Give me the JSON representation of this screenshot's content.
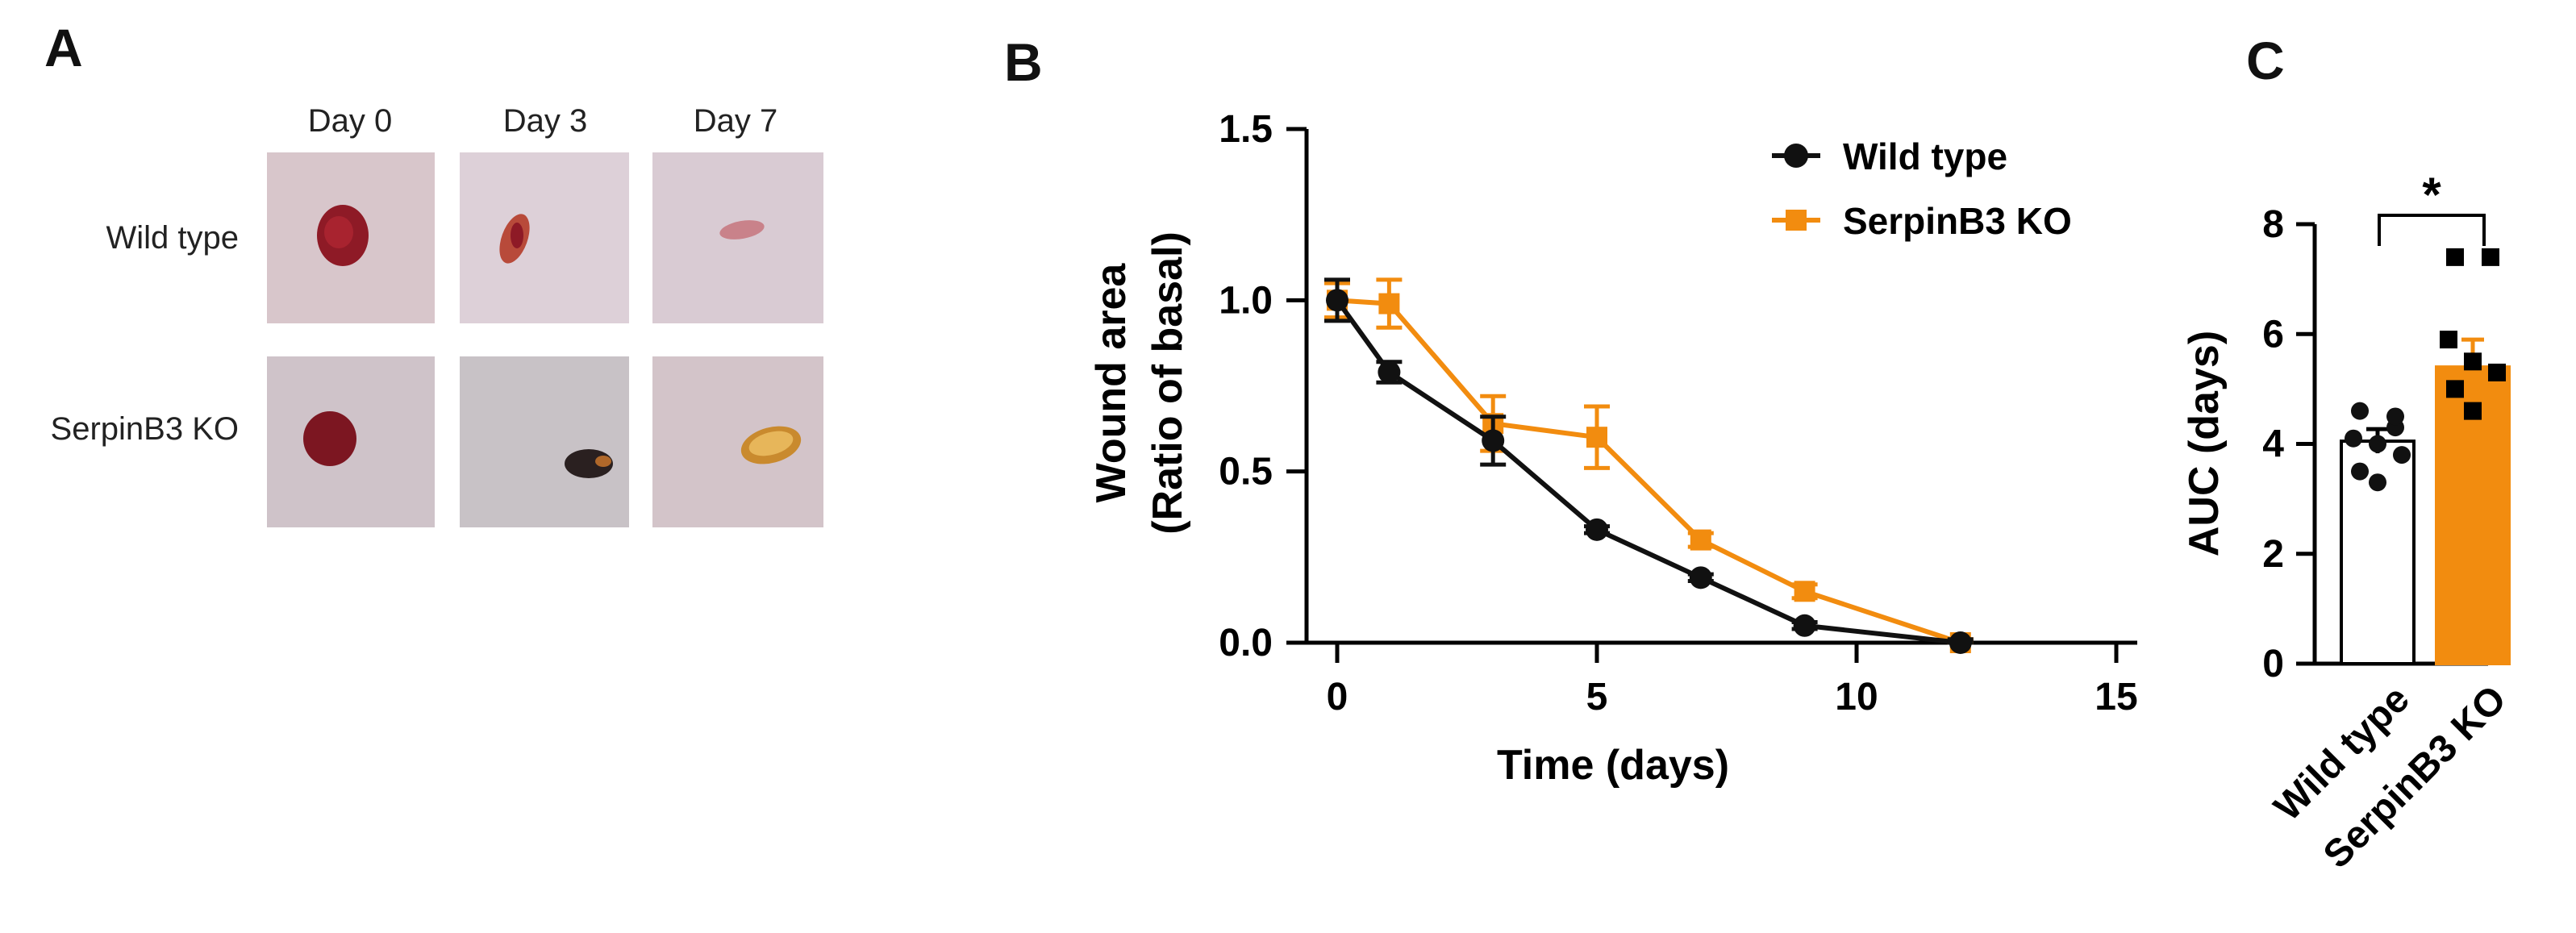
{
  "panels": {
    "a": {
      "letter": "A"
    },
    "b": {
      "letter": "B"
    },
    "c": {
      "letter": "C"
    }
  },
  "photos": {
    "columns": [
      "Day 0",
      "Day 3",
      "Day 7"
    ],
    "rows": [
      "Wild type",
      "SerpinB3 KO"
    ],
    "colors": {
      "skin_wt": "#d7c7cc",
      "skin_ko": "#cabfc4",
      "wound_red": "#8e1a26",
      "wound_scab": "#2a2020",
      "wound_yellow": "#d49a3a"
    }
  },
  "colors": {
    "wild_type": "#111111",
    "knockout": "#f28c0f"
  },
  "chart_data": [
    {
      "type": "line",
      "title": "",
      "xlabel": "Time (days)",
      "ylabel": [
        "Wound area",
        "(Ratio of basal)"
      ],
      "xlim": [
        0,
        15
      ],
      "ylim": [
        0,
        1.5
      ],
      "xticks": [
        "0",
        "5",
        "10",
        "15"
      ],
      "yticks": [
        "0.0",
        "0.5",
        "1.0",
        "1.5"
      ],
      "legend": [
        "Wild type",
        "SerpinB3 KO"
      ],
      "series": [
        {
          "name": "Wild type",
          "x": [
            0,
            1,
            3,
            5,
            7,
            9,
            12
          ],
          "y": [
            1.0,
            0.79,
            0.59,
            0.33,
            0.19,
            0.05,
            0.0
          ],
          "err": [
            0.06,
            0.03,
            0.07,
            0.01,
            0.01,
            0.01,
            0.01
          ]
        },
        {
          "name": "SerpinB3 KO",
          "x": [
            0,
            1,
            3,
            5,
            7,
            9,
            12
          ],
          "y": [
            1.0,
            0.99,
            0.64,
            0.6,
            0.3,
            0.15,
            0.0
          ],
          "err": [
            0.05,
            0.07,
            0.08,
            0.09,
            0.02,
            0.02,
            0.01
          ]
        }
      ]
    },
    {
      "type": "bar",
      "title": "",
      "xlabel": "",
      "ylabel": "AUC (days)",
      "ylim": [
        0,
        8
      ],
      "yticks": [
        "0",
        "2",
        "4",
        "6",
        "8"
      ],
      "categories": [
        "Wild type",
        "SerpinB3 KO"
      ],
      "values": [
        4.05,
        5.4
      ],
      "errors": [
        0.22,
        0.5
      ],
      "points": [
        [
          4.6,
          4.3,
          4.1,
          4.0,
          3.8,
          3.5,
          3.3,
          4.5
        ],
        [
          7.4,
          7.4,
          5.9,
          5.5,
          5.3,
          5.0,
          4.6
        ]
      ],
      "significance": "*"
    }
  ]
}
